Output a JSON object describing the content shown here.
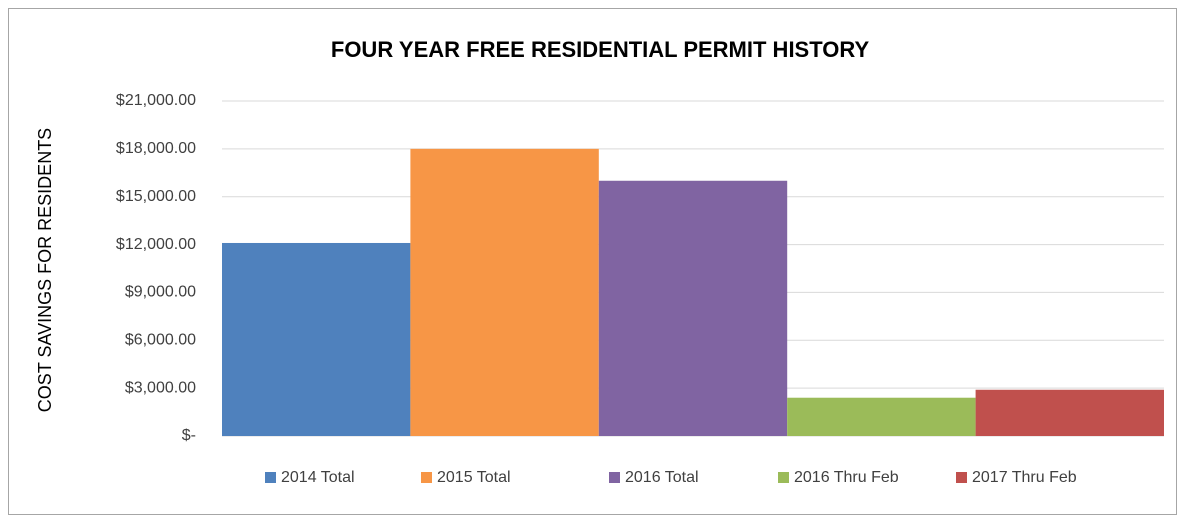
{
  "chart_data": {
    "type": "bar",
    "title": "FOUR YEAR FREE RESIDENTIAL PERMIT HISTORY",
    "y_label": "COST SAVINGS FOR RESIDENTS",
    "categories": [
      null
    ],
    "series": [
      {
        "name": "2014 Total",
        "color": "#4f81bd",
        "values": [
          12100
        ]
      },
      {
        "name": "2015 Total",
        "color": "#f79646",
        "values": [
          18000
        ]
      },
      {
        "name": "2016 Total",
        "color": "#8064a2",
        "values": [
          16000
        ]
      },
      {
        "name": "2016 Thru Feb",
        "color": "#9bbb59",
        "values": [
          2400
        ]
      },
      {
        "name": "2017 Thru Feb",
        "color": "#c0504d",
        "values": [
          2900
        ]
      }
    ],
    "ylim": [
      0,
      21000
    ],
    "yticks": [
      {
        "value": 0,
        "label": "$-"
      },
      {
        "value": 3000,
        "label": "$3,000.00"
      },
      {
        "value": 6000,
        "label": "$6,000.00"
      },
      {
        "value": 9000,
        "label": "$9,000.00"
      },
      {
        "value": 12000,
        "label": "$12,000.00"
      },
      {
        "value": 15000,
        "label": "$15,000.00"
      },
      {
        "value": 18000,
        "label": "$18,000.00"
      },
      {
        "value": 21000,
        "label": "$21,000.00"
      }
    ],
    "grid": true,
    "legend": "bottom"
  }
}
